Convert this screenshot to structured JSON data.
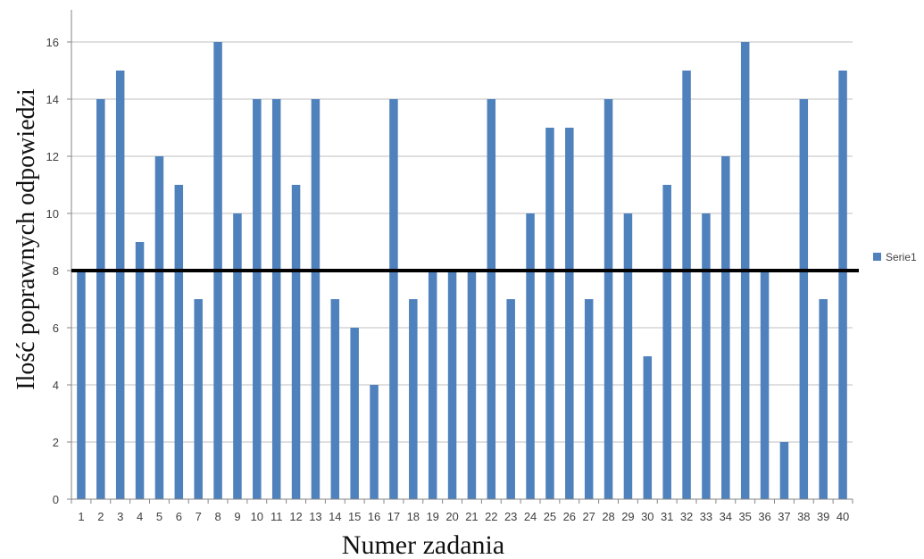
{
  "chart_data": {
    "type": "bar",
    "categories": [
      "1",
      "2",
      "3",
      "4",
      "5",
      "6",
      "7",
      "8",
      "9",
      "10",
      "11",
      "12",
      "13",
      "14",
      "15",
      "16",
      "17",
      "18",
      "19",
      "20",
      "21",
      "22",
      "23",
      "24",
      "25",
      "26",
      "27",
      "28",
      "29",
      "30",
      "31",
      "32",
      "33",
      "34",
      "35",
      "36",
      "37",
      "38",
      "39",
      "40"
    ],
    "series": [
      {
        "name": "Serie1",
        "values": [
          8,
          14,
          15,
          9,
          12,
          11,
          7,
          16,
          10,
          14,
          14,
          11,
          14,
          7,
          6,
          4,
          14,
          7,
          8,
          8,
          8,
          14,
          7,
          10,
          13,
          13,
          7,
          14,
          10,
          5,
          11,
          15,
          10,
          12,
          16,
          8,
          2,
          14,
          7,
          15
        ]
      }
    ],
    "xlabel": "Numer zadania",
    "ylabel": "Ilość poprawnych odpowiedzi",
    "ylim": [
      0,
      16
    ],
    "yticks": [
      0,
      2,
      4,
      6,
      8,
      10,
      12,
      14,
      16
    ],
    "reference_line": {
      "value": 8,
      "color": "#000000"
    },
    "grid": true,
    "legend_position": "right",
    "colors": {
      "bar": "#4F81BD",
      "grid": "#BFBFBF",
      "axis": "#868686"
    }
  }
}
